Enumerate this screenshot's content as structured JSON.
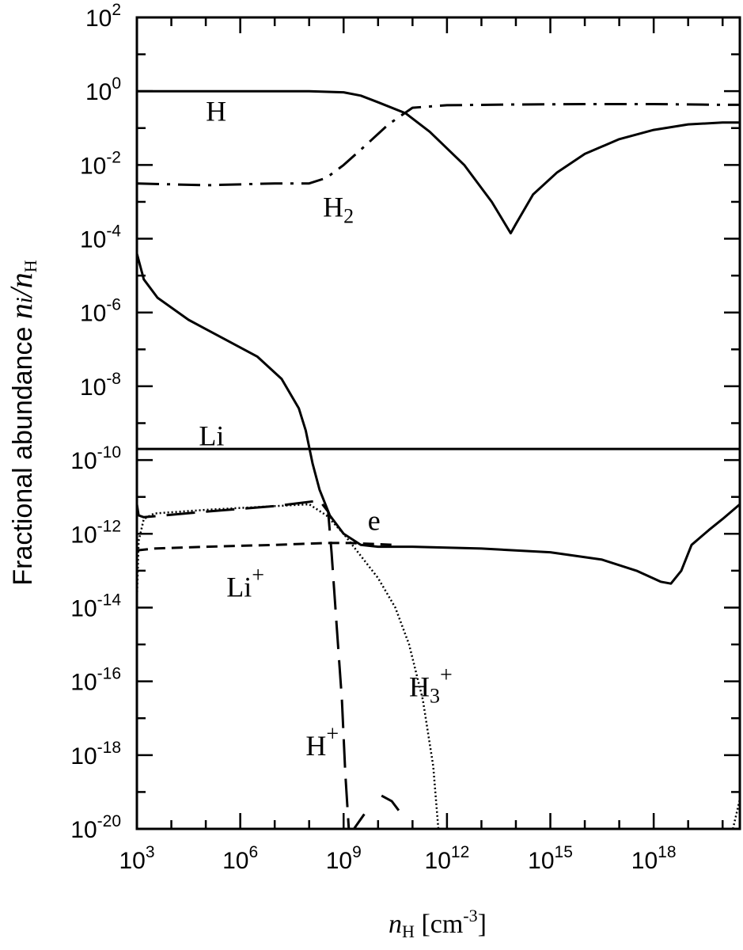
{
  "chart_data": {
    "type": "line",
    "ylabel": "Fractional abundance n_i/n_H",
    "ylabel_parts": {
      "main": "Fractional abundance ",
      "sym": "n",
      "sub1": "i",
      "slash": "/",
      "sym2": "n",
      "sub2": "H"
    },
    "xlabel": "n_H [cm^-3]",
    "xlabel_parts": {
      "sym": "n",
      "sub": "H",
      "unit_open": " [cm",
      "exp": "-3",
      "unit_close": "]"
    },
    "x_scale": "log",
    "y_scale": "log",
    "xlim_log10": [
      3,
      20.5
    ],
    "ylim_log10": [
      -20,
      2
    ],
    "x_ticks": [
      {
        "exp": 3,
        "base": "10",
        "sup": "3"
      },
      {
        "exp": 6,
        "base": "10",
        "sup": "6"
      },
      {
        "exp": 9,
        "base": "10",
        "sup": "9"
      },
      {
        "exp": 12,
        "base": "10",
        "sup": "12"
      },
      {
        "exp": 15,
        "base": "10",
        "sup": "15"
      },
      {
        "exp": 18,
        "base": "10",
        "sup": "18"
      }
    ],
    "y_ticks": [
      {
        "exp": 2,
        "base": "10",
        "sup": "2"
      },
      {
        "exp": 0,
        "base": "10",
        "sup": "0"
      },
      {
        "exp": -2,
        "base": "10",
        "sup": "-2"
      },
      {
        "exp": -4,
        "base": "10",
        "sup": "-4"
      },
      {
        "exp": -6,
        "base": "10",
        "sup": "-6"
      },
      {
        "exp": -8,
        "base": "10",
        "sup": "-8"
      },
      {
        "exp": -10,
        "base": "10",
        "sup": "-10"
      },
      {
        "exp": -12,
        "base": "10",
        "sup": "-12"
      },
      {
        "exp": -14,
        "base": "10",
        "sup": "-14"
      },
      {
        "exp": -16,
        "base": "10",
        "sup": "-16"
      },
      {
        "exp": -18,
        "base": "10",
        "sup": "-18"
      },
      {
        "exp": -20,
        "base": "10",
        "sup": "-20"
      }
    ],
    "series": [
      {
        "name": "H",
        "label": {
          "base": "H",
          "sub": "",
          "sup": ""
        },
        "style": "solid",
        "label_at": [
          5.0,
          -0.8
        ],
        "points": [
          [
            3,
            0
          ],
          [
            5,
            0
          ],
          [
            7,
            0
          ],
          [
            8,
            0
          ],
          [
            9,
            -0.03
          ],
          [
            9.5,
            -0.12
          ],
          [
            10,
            -0.3
          ],
          [
            10.8,
            -0.6
          ],
          [
            11.5,
            -1.1
          ],
          [
            12.5,
            -2.0
          ],
          [
            13.3,
            -3.0
          ],
          [
            13.85,
            -3.85
          ],
          [
            14,
            -3.6
          ],
          [
            14.5,
            -2.8
          ],
          [
            15.2,
            -2.2
          ],
          [
            16,
            -1.7
          ],
          [
            17,
            -1.3
          ],
          [
            18,
            -1.05
          ],
          [
            19,
            -0.9
          ],
          [
            20,
            -0.85
          ],
          [
            20.5,
            -0.85
          ]
        ]
      },
      {
        "name": "H2",
        "label": {
          "base": "H",
          "sub": "2",
          "sup": ""
        },
        "style": "dashdot",
        "label_at": [
          8.4,
          -3.4
        ],
        "points": [
          [
            3,
            -2.5
          ],
          [
            5,
            -2.55
          ],
          [
            7,
            -2.5
          ],
          [
            8,
            -2.5
          ],
          [
            8.5,
            -2.35
          ],
          [
            9,
            -2.0
          ],
          [
            9.6,
            -1.5
          ],
          [
            10.3,
            -0.9
          ],
          [
            11,
            -0.45
          ],
          [
            12,
            -0.38
          ],
          [
            14,
            -0.36
          ],
          [
            16,
            -0.35
          ],
          [
            18,
            -0.35
          ],
          [
            20,
            -0.37
          ],
          [
            20.5,
            -0.37
          ]
        ]
      },
      {
        "name": "e",
        "label": {
          "base": "e",
          "sub": "",
          "sup": ""
        },
        "style": "solid",
        "label_at": [
          9.7,
          -11.9
        ],
        "points": [
          [
            3,
            -4.4
          ],
          [
            3.2,
            -5.1
          ],
          [
            3.6,
            -5.6
          ],
          [
            4.5,
            -6.2
          ],
          [
            5.5,
            -6.7
          ],
          [
            6.5,
            -7.2
          ],
          [
            7.2,
            -7.8
          ],
          [
            7.7,
            -8.6
          ],
          [
            7.9,
            -9.2
          ],
          [
            8.1,
            -10.1
          ],
          [
            8.3,
            -10.8
          ],
          [
            8.6,
            -11.5
          ],
          [
            9.0,
            -12.0
          ],
          [
            9.5,
            -12.3
          ],
          [
            10,
            -12.35
          ],
          [
            11,
            -12.35
          ],
          [
            13,
            -12.4
          ],
          [
            15,
            -12.5
          ],
          [
            16.5,
            -12.7
          ],
          [
            17.5,
            -13.0
          ],
          [
            18.2,
            -13.3
          ],
          [
            18.5,
            -13.35
          ],
          [
            18.8,
            -13.0
          ],
          [
            19.1,
            -12.3
          ],
          [
            19.6,
            -11.9
          ],
          [
            20,
            -11.6
          ],
          [
            20.5,
            -11.2
          ]
        ]
      },
      {
        "name": "Li",
        "label": {
          "base": "Li",
          "sub": "",
          "sup": ""
        },
        "style": "solid",
        "label_at": [
          4.8,
          -9.6
        ],
        "points": [
          [
            3,
            -9.7
          ],
          [
            20.5,
            -9.7
          ]
        ]
      },
      {
        "name": "Li+",
        "label": {
          "base": "Li",
          "sub": "",
          "sup": "+"
        },
        "style": "dash",
        "label_at": [
          5.6,
          -13.7
        ],
        "points": [
          [
            3,
            -12.45
          ],
          [
            3.5,
            -12.4
          ],
          [
            5,
            -12.35
          ],
          [
            7,
            -12.3
          ],
          [
            8.5,
            -12.25
          ],
          [
            9.2,
            -12.25
          ],
          [
            10.5,
            -12.3
          ]
        ]
      },
      {
        "name": "H+",
        "label": {
          "base": "H",
          "sub": "",
          "sup": "+"
        },
        "style": "longdash",
        "label_at": [
          7.9,
          -18.0
        ],
        "points": [
          [
            3,
            -11.2
          ],
          [
            3.05,
            -11.5
          ],
          [
            3.2,
            -11.55
          ],
          [
            5,
            -11.4
          ],
          [
            7,
            -11.25
          ],
          [
            8.3,
            -11.1
          ],
          [
            8.55,
            -11.4
          ],
          [
            8.65,
            -12.5
          ],
          [
            8.8,
            -14.5
          ],
          [
            8.95,
            -16.5
          ],
          [
            9.05,
            -18.5
          ],
          [
            9.15,
            -20
          ]
        ],
        "extra": [
          [
            [
              9.3,
              -20
            ],
            [
              9.6,
              -19.6
            ]
          ],
          [
            [
              10.1,
              -19.1
            ],
            [
              10.4,
              -19.25
            ],
            [
              10.6,
              -19.5
            ]
          ]
        ]
      },
      {
        "name": "H3+",
        "label": {
          "base": "H",
          "sub": "3",
          "sup": "+"
        },
        "style": "dot",
        "label_at": [
          10.9,
          -16.4
        ],
        "points": [
          [
            3,
            -13.8
          ],
          [
            3.05,
            -12.2
          ],
          [
            3.2,
            -11.6
          ],
          [
            3.5,
            -11.45
          ],
          [
            5,
            -11.35
          ],
          [
            7,
            -11.25
          ],
          [
            8,
            -11.2
          ],
          [
            8.5,
            -11.5
          ],
          [
            9,
            -12
          ],
          [
            9.5,
            -12.6
          ],
          [
            10,
            -13.2
          ],
          [
            10.5,
            -14
          ],
          [
            10.9,
            -15
          ],
          [
            11.3,
            -16.5
          ],
          [
            11.6,
            -18.3
          ],
          [
            11.75,
            -20
          ]
        ],
        "extra": [
          [
            [
              20.3,
              -20
            ],
            [
              20.5,
              -19.2
            ]
          ]
        ]
      }
    ]
  }
}
